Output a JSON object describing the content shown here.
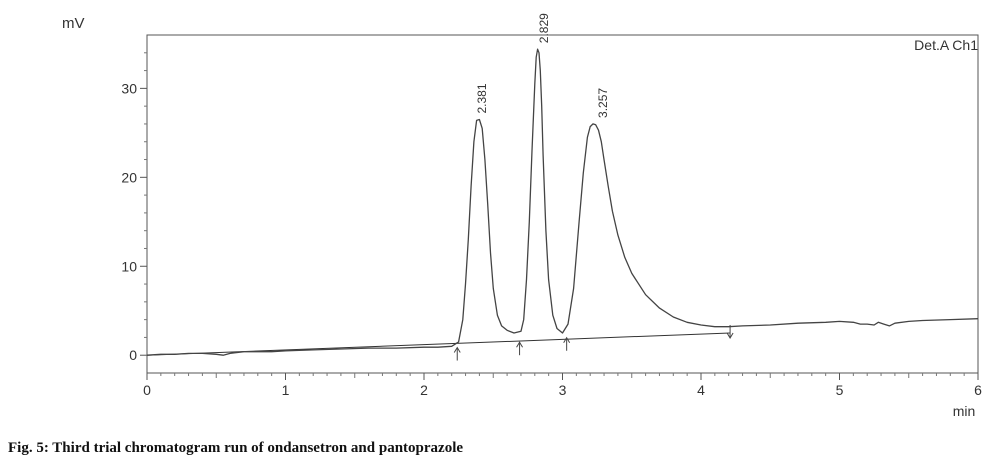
{
  "caption": "Fig. 5: Third trial chromatogram run of ondansetron and pantoprazole",
  "chart_data": {
    "type": "line",
    "title": "",
    "channel_label": "Det.A Ch1",
    "xlabel": "min",
    "ylabel": "mV",
    "xlim": [
      0,
      6
    ],
    "ylim": [
      -2,
      36
    ],
    "x_ticks": [
      0,
      1,
      2,
      3,
      4,
      5,
      6
    ],
    "y_ticks": [
      0,
      10,
      20,
      30
    ],
    "grid": false,
    "baseline_color": "#333333",
    "trace_color": "#444444",
    "peaks": [
      {
        "label": "2.381",
        "retention_time": 2.381,
        "height_mv": 26.5
      },
      {
        "label": "2.829",
        "retention_time": 2.829,
        "height_mv": 34.4
      },
      {
        "label": "3.257",
        "retention_time": 3.257,
        "height_mv": 26.0
      }
    ],
    "integration_markers": [
      {
        "x": 2.24,
        "y": 0.3,
        "dir": "up"
      },
      {
        "x": 2.69,
        "y": 0.9,
        "dir": "up"
      },
      {
        "x": 3.03,
        "y": 1.4,
        "dir": "up"
      },
      {
        "x": 4.21,
        "y": 2.5,
        "dir": "down"
      }
    ],
    "series": [
      {
        "x": [
          0,
          0.1,
          0.2,
          0.3,
          0.4,
          0.5,
          0.55,
          0.6,
          0.7,
          0.8,
          0.9,
          1.0,
          1.2,
          1.4,
          1.6,
          1.8,
          2.0,
          2.1,
          2.2,
          2.25,
          2.28,
          2.3,
          2.32,
          2.34,
          2.36,
          2.38,
          2.4,
          2.42,
          2.44,
          2.46,
          2.48,
          2.5,
          2.53,
          2.56,
          2.6,
          2.65,
          2.7,
          2.72,
          2.74,
          2.76,
          2.78,
          2.8,
          2.81,
          2.82,
          2.83,
          2.84,
          2.85,
          2.86,
          2.88,
          2.9,
          2.93,
          2.96,
          3.0,
          3.04,
          3.08,
          3.12,
          3.15,
          3.18,
          3.2,
          3.22,
          3.24,
          3.26,
          3.28,
          3.3,
          3.33,
          3.36,
          3.4,
          3.45,
          3.5,
          3.6,
          3.7,
          3.8,
          3.9,
          4.0,
          4.1,
          4.2,
          4.3,
          4.5,
          4.7,
          4.9,
          5.0,
          5.1,
          5.15,
          5.2,
          5.25,
          5.28,
          5.32,
          5.36,
          5.4,
          5.5,
          5.6,
          5.8,
          6.0
        ],
        "y": [
          0,
          0.1,
          0.1,
          0.2,
          0.2,
          0.1,
          0,
          0.2,
          0.4,
          0.4,
          0.4,
          0.5,
          0.6,
          0.7,
          0.8,
          0.8,
          0.9,
          0.9,
          1.0,
          1.5,
          4.0,
          8.0,
          13.0,
          19.0,
          24.0,
          26.4,
          26.5,
          25.5,
          22.0,
          17.0,
          11.5,
          7.5,
          4.5,
          3.3,
          2.8,
          2.5,
          2.7,
          4.0,
          8.5,
          15.0,
          23.0,
          30.5,
          33.5,
          34.4,
          34.0,
          32.0,
          28.0,
          22.5,
          14.0,
          8.5,
          4.5,
          3.0,
          2.5,
          3.5,
          7.5,
          15.0,
          20.5,
          24.5,
          25.7,
          26.0,
          25.9,
          25.3,
          24.0,
          22.0,
          19.0,
          16.2,
          13.5,
          11.0,
          9.2,
          6.8,
          5.3,
          4.3,
          3.7,
          3.4,
          3.2,
          3.2,
          3.3,
          3.4,
          3.6,
          3.7,
          3.8,
          3.7,
          3.5,
          3.5,
          3.4,
          3.7,
          3.5,
          3.3,
          3.6,
          3.8,
          3.9,
          4.0,
          4.1
        ]
      }
    ],
    "baseline": {
      "x": [
        0,
        4.21
      ],
      "y": [
        0,
        2.5
      ]
    }
  }
}
